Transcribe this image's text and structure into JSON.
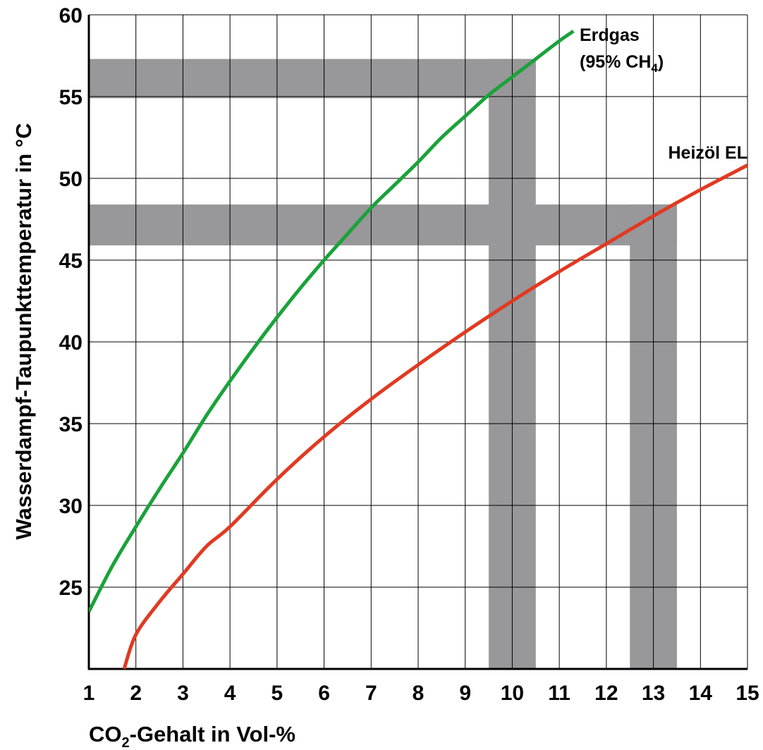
{
  "chart_data": {
    "type": "line",
    "title": "",
    "xlabel": {
      "pre": "CO",
      "sub": "2",
      "post": "-Gehalt in Vol-%"
    },
    "ylabel": "Wasserdampf-Taupunkttemperatur in °C",
    "xlim": [
      1,
      15
    ],
    "ylim": [
      20,
      60
    ],
    "x_ticks": [
      1,
      2,
      3,
      4,
      5,
      6,
      7,
      8,
      9,
      10,
      11,
      12,
      13,
      14,
      15
    ],
    "y_ticks": [
      25,
      30,
      35,
      40,
      45,
      50,
      55,
      60
    ],
    "grid": true,
    "series": [
      {
        "name": "Erdgas",
        "color": "#1aa23a",
        "x": [
          1.0,
          1.5,
          2.0,
          2.5,
          3.0,
          3.5,
          4.0,
          4.5,
          5.0,
          5.5,
          6.0,
          6.5,
          7.0,
          7.5,
          8.0,
          8.5,
          9.0,
          9.5,
          10.0,
          10.5,
          11.0,
          11.3
        ],
        "y": [
          23.5,
          26.3,
          28.7,
          31.0,
          33.2,
          35.5,
          37.6,
          39.6,
          41.5,
          43.3,
          45.0,
          46.6,
          48.2,
          49.6,
          51.0,
          52.5,
          53.8,
          55.1,
          56.2,
          57.3,
          58.4,
          59.0
        ]
      },
      {
        "name": "Heizöl EL",
        "color": "#e03a22",
        "x": [
          1.75,
          2.0,
          2.5,
          3.0,
          3.5,
          4.0,
          5.0,
          6.0,
          7.0,
          8.0,
          9.0,
          10.0,
          11.0,
          12.0,
          13.0,
          14.0,
          15.0
        ],
        "y": [
          20.0,
          22.1,
          24.1,
          25.8,
          27.5,
          28.7,
          31.6,
          34.2,
          36.5,
          38.6,
          40.6,
          42.5,
          44.3,
          46.0,
          47.7,
          49.3,
          50.8
        ]
      }
    ],
    "series_labels": [
      {
        "series": "Erdgas",
        "lines": [
          "Erdgas",
          "(95% CH"
        ],
        "sub": "4",
        "close": ")"
      },
      {
        "series": "Heizöl EL",
        "lines": [
          "Heizöl EL"
        ]
      }
    ],
    "bands": [
      {
        "orientation": "horizontal",
        "y_from": 54.9,
        "y_to": 57.3,
        "x_from": 1,
        "x_to": 10.5
      },
      {
        "orientation": "vertical",
        "x_from": 9.5,
        "x_to": 10.5,
        "y_from": 20,
        "y_to": 57.3
      },
      {
        "orientation": "horizontal",
        "y_from": 45.9,
        "y_to": 48.4,
        "x_from": 1,
        "x_to": 13.5
      },
      {
        "orientation": "vertical",
        "x_from": 12.5,
        "x_to": 13.5,
        "y_from": 20,
        "y_to": 48.4
      }
    ],
    "band_color": "#98979a",
    "grid_color": "#000000",
    "axis_color": "#000000"
  }
}
